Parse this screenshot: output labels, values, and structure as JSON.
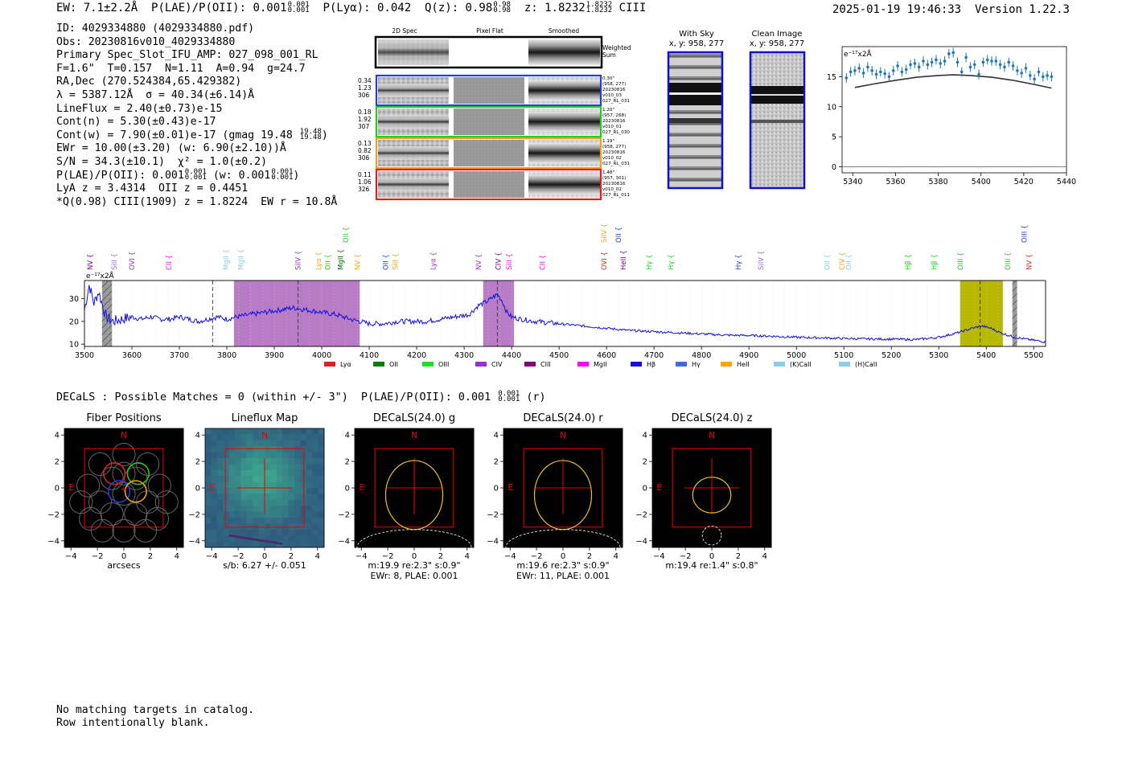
{
  "header": {
    "ew": "EW: 7.1±2.2Å",
    "plae_label": "P(LAE)/P(OII): 0.001",
    "plae_sup": "0.001",
    "plae_sub": "0.001",
    "plya": "P(Lyα): 0.042",
    "q_label": "Q(z): 0.98",
    "q_sup": "0.98",
    "q_sub": "0.98",
    "z_label": "z: 1.8232",
    "z_sup": "1.8232",
    "z_sub": "1.8232",
    "z_line": "CIII",
    "timestamp": "2025-01-19 19:46:33",
    "version": "Version 1.22.3"
  },
  "info": {
    "id": "ID: 4029334880 (4029334880.pdf)",
    "obs": "Obs: 20230816v010_4029334880",
    "primary": "Primary Spec_Slot_IFU_AMP: 027_098_001_RL",
    "fparams": "F=1.6\"  T=0.157  N=1.11  A=0.94  g=24.7",
    "radec": "RA,Dec (270.524384,65.429382)",
    "lambda": "λ = 5387.12Å  σ = 40.34(±6.14)Å",
    "lineflux": "LineFlux = 2.40(±0.73)e-15",
    "contn": "Cont(n) = 5.30(±0.43)e-17",
    "contw": "Cont(w) = 7.90(±0.01)e-17 (gmag 19.48",
    "contw_sup": "19.48",
    "contw_sub": "19.48",
    "contw_end": ")",
    "ewr": "EWr = 10.00(±3.20) (w: 6.90(±2.10))Å",
    "sn": "S/N = 34.3(±10.1)  χ² = 1.0(±0.2)",
    "plae": "P(LAE)/P(OII): 0.001",
    "plae_sup": "0.001",
    "plae_sub": "0.001",
    "plae_w": "(w: 0.001",
    "plae_w_sup": "0.001",
    "plae_w_sub": "0.001",
    "plae_w_end": ")",
    "lya": "LyA z = 3.4314  OII z = 0.4451",
    "q": "*Q(0.98) CIII(1909) z = 1.8224  EW r = 10.8Å"
  },
  "cutouts": {
    "col_2d": "2D Spec",
    "col_flat": "Pixel Flat",
    "col_smooth": "Smoothed",
    "weighted_sum": "Weighted Sum",
    "rows": [
      {
        "color": "#1f3fd6",
        "l1": "0.34",
        "l2": "1.23",
        "l3": "306",
        "r1": "0.30\"",
        "r2": "(958, 277)",
        "r3": "20230816",
        "r4": "v010_03",
        "r5": "027_RL_031"
      },
      {
        "color": "#22cc22",
        "l1": "0.18",
        "l2": "1.92",
        "l3": "307",
        "r1": "1.20\"",
        "r2": "(957, 268)",
        "r3": "20230816",
        "r4": "v010_01",
        "r5": "027_RL_030"
      },
      {
        "color": "#f0a020",
        "l1": "0.13",
        "l2": "0.82",
        "l3": "306",
        "r1": "1.19\"",
        "r2": "(958, 277)",
        "r3": "20230816",
        "r4": "v010_02",
        "r5": "027_RL_031"
      },
      {
        "color": "#e02020",
        "l1": "0.11",
        "l2": "1.06",
        "l3": "326",
        "r1": "1.48\"",
        "r2": "(957, 301)",
        "r3": "20230816",
        "r4": "v010_02",
        "r5": "027_RL_011"
      }
    ]
  },
  "sky": {
    "with_sky": "With Sky",
    "with_sky_xy": "x, y: 958, 277",
    "clean": "Clean Image",
    "clean_xy": "x, y: 958, 277"
  },
  "zoom_plot": {
    "unit": "e⁻¹⁷x2Å",
    "x_ticks": [
      "5340",
      "5360",
      "5380",
      "5400",
      "5420",
      "5440"
    ],
    "y_ticks": [
      "0",
      "5",
      "10",
      "15"
    ]
  },
  "full_spec": {
    "unit": "e⁻¹⁷x2Å",
    "x_ticks": [
      "3500",
      "3600",
      "3700",
      "3800",
      "3900",
      "4000",
      "4100",
      "4200",
      "4300",
      "4400",
      "4500",
      "4600",
      "4700",
      "4800",
      "4900",
      "5000",
      "5100",
      "5200",
      "5300",
      "5400",
      "5500"
    ],
    "y_ticks": [
      "10",
      "20",
      "30"
    ],
    "lines": [
      {
        "name": "NV",
        "wave": 3512,
        "color": "#800080",
        "row": 1
      },
      {
        "name": "SiII",
        "wave": 3563,
        "color": "#9370db",
        "row": 1
      },
      {
        "name": "OVI",
        "wave": 3600,
        "color": "#9932cc",
        "row": 1
      },
      {
        "name": "CII",
        "wave": 3678,
        "color": "#ff00ff",
        "row": 1
      },
      {
        "name": "MgII",
        "wave": 3798,
        "color": "#87ceeb",
        "row": 1
      },
      {
        "name": "MgII",
        "wave": 3830,
        "color": "#87ceeb",
        "row": 1
      },
      {
        "name": "SiIV",
        "wave": 3950,
        "color": "#9932cc",
        "row": 1
      },
      {
        "name": "Lyα",
        "wave": 3993,
        "color": "#ffa500",
        "row": 1
      },
      {
        "name": "OII",
        "wave": 4013,
        "color": "#22cc22",
        "row": 1
      },
      {
        "name": "MgII",
        "wave": 4040,
        "color": "#006400",
        "row": 1
      },
      {
        "name": "NV",
        "wave": 4075,
        "color": "#ffa500",
        "row": 1
      },
      {
        "name": "OII",
        "wave": 4051,
        "color": "#22cc22",
        "row": 0
      },
      {
        "name": "OII",
        "wave": 4135,
        "color": "#1f3fd6",
        "row": 1
      },
      {
        "name": "SiII",
        "wave": 4155,
        "color": "#f0a020",
        "row": 1
      },
      {
        "name": "Lyα",
        "wave": 4235,
        "color": "#9932cc",
        "row": 1
      },
      {
        "name": "NV",
        "wave": 4330,
        "color": "#9932cc",
        "row": 1
      },
      {
        "name": "CIV",
        "wave": 4372,
        "color": "#800080",
        "row": 1
      },
      {
        "name": "SiII",
        "wave": 4395,
        "color": "#ff00ff",
        "row": 1
      },
      {
        "name": "CII",
        "wave": 4465,
        "color": "#ff00ff",
        "row": 1
      },
      {
        "name": "SiIV",
        "wave": 4595,
        "color": "#f0a020",
        "row": 0
      },
      {
        "name": "OII",
        "wave": 4625,
        "color": "#1f3fd6",
        "row": 0
      },
      {
        "name": "OVI",
        "wave": 4595,
        "color": "#e02020",
        "row": 1
      },
      {
        "name": "HeII",
        "wave": 4635,
        "color": "#800080",
        "row": 1
      },
      {
        "name": "Hγ",
        "wave": 4690,
        "color": "#22cc22",
        "row": 1
      },
      {
        "name": "Hγ",
        "wave": 4735,
        "color": "#22cc22",
        "row": 1
      },
      {
        "name": "Hγ",
        "wave": 4878,
        "color": "#1f3fd6",
        "row": 1
      },
      {
        "name": "SiIV",
        "wave": 4925,
        "color": "#9370db",
        "row": 1
      },
      {
        "name": "OII",
        "wave": 5065,
        "color": "#87ceeb",
        "row": 1
      },
      {
        "name": "CIV",
        "wave": 5096,
        "color": "#f0a020",
        "row": 1
      },
      {
        "name": "OII",
        "wave": 5110,
        "color": "#87ceeb",
        "row": 1
      },
      {
        "name": "Hβ",
        "wave": 5235,
        "color": "#22cc22",
        "row": 1
      },
      {
        "name": "Hβ",
        "wave": 5290,
        "color": "#22cc22",
        "row": 1
      },
      {
        "name": "OIII",
        "wave": 5345,
        "color": "#22cc22",
        "row": 1
      },
      {
        "name": "OIII",
        "wave": 5445,
        "color": "#22cc22",
        "row": 1
      },
      {
        "name": "NV",
        "wave": 5490,
        "color": "#e02020",
        "row": 1
      },
      {
        "name": "OIII",
        "wave": 5480,
        "color": "#1f3fd6",
        "row": 0
      }
    ],
    "legend": [
      {
        "label": "Lyα",
        "color": "#e02020"
      },
      {
        "label": "OII",
        "color": "#0b7d0b"
      },
      {
        "label": "OIII",
        "color": "#22dd22"
      },
      {
        "label": "CIV",
        "color": "#9932cc"
      },
      {
        "label": "CIII",
        "color": "#800080"
      },
      {
        "label": "MgII",
        "color": "#ff00ff"
      },
      {
        "label": "Hβ",
        "color": "#1010e0"
      },
      {
        "label": "Hγ",
        "color": "#4169e1"
      },
      {
        "label": "HeII",
        "color": "#ffa500"
      },
      {
        "label": "(K)CaII",
        "color": "#87ceeb"
      },
      {
        "label": "(H)CaII",
        "color": "#87ceeb"
      }
    ]
  },
  "decals_line": {
    "text": "DECaLS : Possible Matches = 0 (within +/- 3\")  P(LAE)/P(OII): 0.001",
    "sup": "0.001",
    "sub": "0.001",
    "end": "(r)"
  },
  "imaging": [
    {
      "title": "Fiber Positions",
      "cap1": "arcsecs",
      "cap2": ""
    },
    {
      "title": "Lineflux Map",
      "cap1": "s/b: 6.27 +/- 0.051",
      "cap2": ""
    },
    {
      "title": "DECaLS(24.0) g",
      "cap1": "m:19.9  re:2.3\"  s:0.9\"",
      "cap2": "EWr: 8, PLAE: 0.001"
    },
    {
      "title": "DECaLS(24.0) r",
      "cap1": "m:19.6  re:2.3\"  s:0.9\"",
      "cap2": "EWr: 11, PLAE: 0.001"
    },
    {
      "title": "DECaLS(24.0) z",
      "cap1": "m:19.4  re:1.4\"  s:0.8\"",
      "cap2": ""
    }
  ],
  "imaging_axes": {
    "ticks": [
      "−4",
      "−2",
      "0",
      "2",
      "4"
    ],
    "north": "N",
    "east": "E"
  },
  "footer": {
    "line1": "No matching targets in catalog.",
    "line2": "Row intentionally blank."
  },
  "chart_data": [
    {
      "type": "scatter",
      "title": "",
      "xlabel": "",
      "ylabel": "e⁻¹⁷x2Å",
      "xlim": [
        5335,
        5440
      ],
      "ylim": [
        -1,
        20
      ],
      "series": [
        {
          "name": "data",
          "x": [
            5337,
            5339,
            5341,
            5343,
            5345,
            5347,
            5349,
            5351,
            5353,
            5355,
            5357,
            5359,
            5361,
            5363,
            5365,
            5367,
            5369,
            5371,
            5373,
            5375,
            5377,
            5379,
            5381,
            5383,
            5385,
            5387,
            5389,
            5391,
            5393,
            5395,
            5397,
            5399,
            5401,
            5403,
            5405,
            5407,
            5409,
            5411,
            5413,
            5415,
            5417,
            5419,
            5421,
            5423,
            5425,
            5427,
            5429,
            5431,
            5433
          ],
          "y": [
            14.8,
            15.8,
            16.0,
            16.4,
            15.6,
            16.6,
            16.0,
            15.4,
            15.8,
            15.5,
            15.0,
            16.0,
            16.8,
            15.8,
            16.2,
            17.0,
            17.2,
            16.6,
            17.6,
            17.0,
            17.4,
            17.8,
            17.2,
            17.6,
            18.8,
            19.0,
            17.4,
            15.8,
            18.2,
            16.6,
            17.0,
            15.4,
            17.4,
            17.8,
            17.6,
            17.6,
            17.0,
            16.6,
            17.4,
            16.8,
            16.0,
            15.6,
            16.4,
            15.2,
            14.6,
            15.8,
            15.0,
            15.2,
            15.0
          ]
        },
        {
          "name": "model",
          "x": [
            5341,
            5350,
            5360,
            5370,
            5380,
            5387,
            5395,
            5405,
            5415,
            5425,
            5433
          ],
          "y": [
            13.2,
            13.8,
            14.4,
            14.9,
            15.2,
            15.3,
            15.2,
            14.9,
            14.4,
            13.7,
            13.1
          ]
        }
      ]
    },
    {
      "type": "line",
      "title": "",
      "xlabel": "",
      "ylabel": "e⁻¹⁷x2Å",
      "xlim": [
        3500,
        5525
      ],
      "ylim": [
        9,
        38
      ],
      "series": [
        {
          "name": "spectrum",
          "x": [
            3500,
            3510,
            3520,
            3530,
            3545,
            3560,
            3580,
            3600,
            3620,
            3640,
            3660,
            3680,
            3700,
            3720,
            3740,
            3760,
            3780,
            3800,
            3820,
            3850,
            3880,
            3910,
            3940,
            3970,
            4000,
            4030,
            4060,
            4080,
            4100,
            4130,
            4160,
            4190,
            4220,
            4250,
            4280,
            4310,
            4330,
            4350,
            4370,
            4380,
            4390,
            4400,
            4420,
            4450,
            4500,
            4550,
            4600,
            4650,
            4700,
            4750,
            4800,
            4850,
            4900,
            4950,
            5000,
            5050,
            5100,
            5150,
            5200,
            5250,
            5300,
            5340,
            5370,
            5390,
            5410,
            5430,
            5460,
            5490,
            5525
          ],
          "y": [
            25,
            36,
            28,
            33,
            22,
            20,
            21,
            22,
            21,
            22,
            21,
            21,
            22,
            21,
            20,
            21,
            22,
            21,
            22,
            23,
            24,
            25,
            26,
            25,
            24,
            23,
            21,
            20,
            19,
            19,
            20,
            20,
            20,
            21,
            22,
            23,
            27,
            29,
            32,
            29,
            24,
            22,
            21,
            20,
            19,
            18,
            17,
            16,
            15.5,
            15,
            14.5,
            14,
            13.8,
            13.5,
            13,
            12.8,
            12.5,
            12.3,
            12.2,
            12.0,
            13,
            15,
            17,
            18,
            17,
            15,
            13,
            12,
            11
          ]
        }
      ],
      "shaded_regions": [
        [
          3815,
          4080
        ],
        [
          4340,
          4405
        ],
        [
          5345,
          5435
        ]
      ],
      "vlines": [
        3770,
        3950,
        4370,
        5387
      ]
    }
  ]
}
